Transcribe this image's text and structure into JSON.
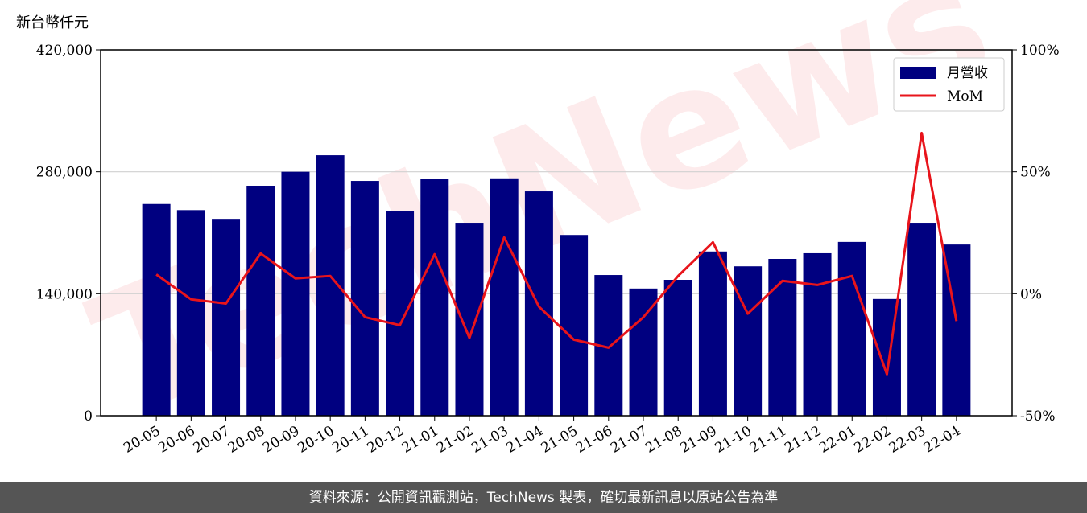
{
  "chart_data": {
    "type": "bar",
    "y_label": "新台幣仟元",
    "watermark": "TechNews",
    "footer": "資料來源：公開資訊觀測站，TechNews 製表，確切最新訊息以原站公告為準",
    "categories": [
      "20-05",
      "20-06",
      "20-07",
      "20-08",
      "20-09",
      "20-10",
      "20-11",
      "20-12",
      "21-01",
      "21-02",
      "21-03",
      "21-04",
      "21-05",
      "21-06",
      "21-07",
      "21-08",
      "21-09",
      "21-10",
      "21-11",
      "21-12",
      "22-01",
      "22-02",
      "22-03",
      "22-04"
    ],
    "series": [
      {
        "name": "月營收",
        "type": "bar",
        "color": "#000080",
        "values": [
          243000,
          236000,
          226000,
          264000,
          280000,
          299000,
          269500,
          234500,
          271500,
          221500,
          272500,
          257500,
          207500,
          161500,
          146000,
          156000,
          188500,
          171500,
          180000,
          186500,
          199500,
          134000,
          221500,
          196500
        ]
      },
      {
        "name": "MoM",
        "type": "line",
        "axis": "y2",
        "color": "#e8141b",
        "values": [
          7.9,
          -2.3,
          -4.0,
          16.5,
          6.3,
          7.3,
          -9.6,
          -12.9,
          16.2,
          -18.1,
          23.1,
          -5.3,
          -18.8,
          -22.1,
          -9.6,
          7.3,
          21.1,
          -8.2,
          5.3,
          3.6,
          7.3,
          -33.0,
          65.9,
          -11.2
        ]
      }
    ],
    "ylim": [
      0,
      420000
    ],
    "yticks": [
      {
        "value": 0,
        "label": "0"
      },
      {
        "value": 140000,
        "label": "140,000"
      },
      {
        "value": 280000,
        "label": "280,000"
      },
      {
        "value": 420000,
        "label": "420,000"
      }
    ],
    "y2lim": [
      -50,
      100
    ],
    "y2ticks": [
      {
        "value": -50,
        "label": "-50%"
      },
      {
        "value": 0,
        "label": "0%"
      },
      {
        "value": 50,
        "label": "50%"
      },
      {
        "value": 100,
        "label": "100%"
      }
    ],
    "grid": true,
    "legend": "upper right"
  }
}
